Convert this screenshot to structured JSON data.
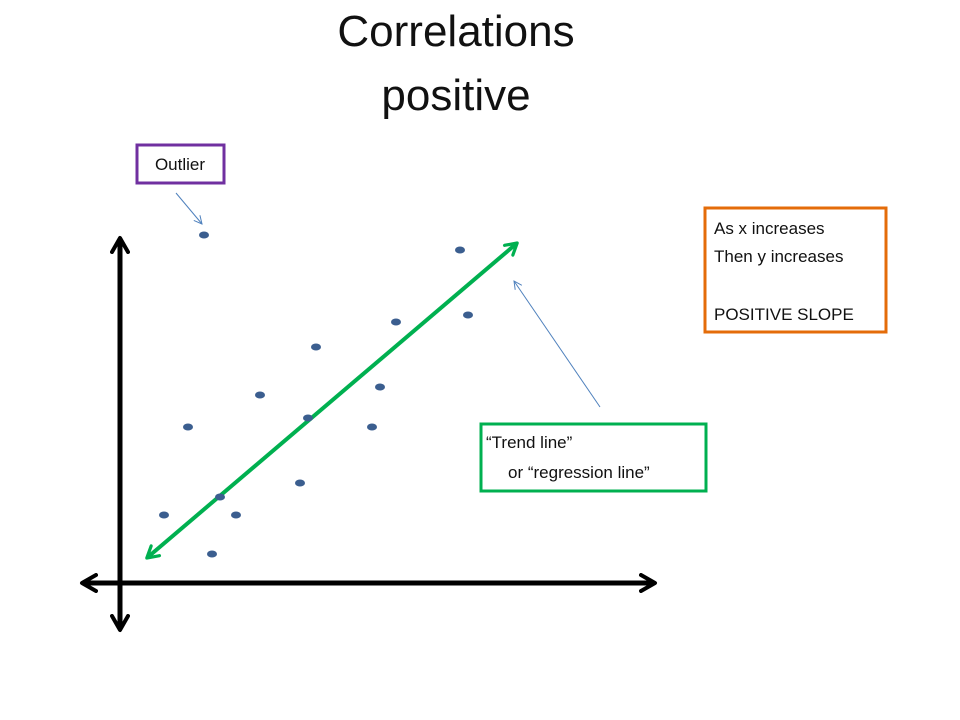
{
  "title": [
    "Correlations",
    "positive"
  ],
  "callouts": {
    "outlier": "Outlier",
    "slope": [
      "As x increases",
      "Then y increases",
      "POSITIVE SLOPE"
    ],
    "trend": [
      "“Trend line”",
      "or “regression line”"
    ]
  }
}
